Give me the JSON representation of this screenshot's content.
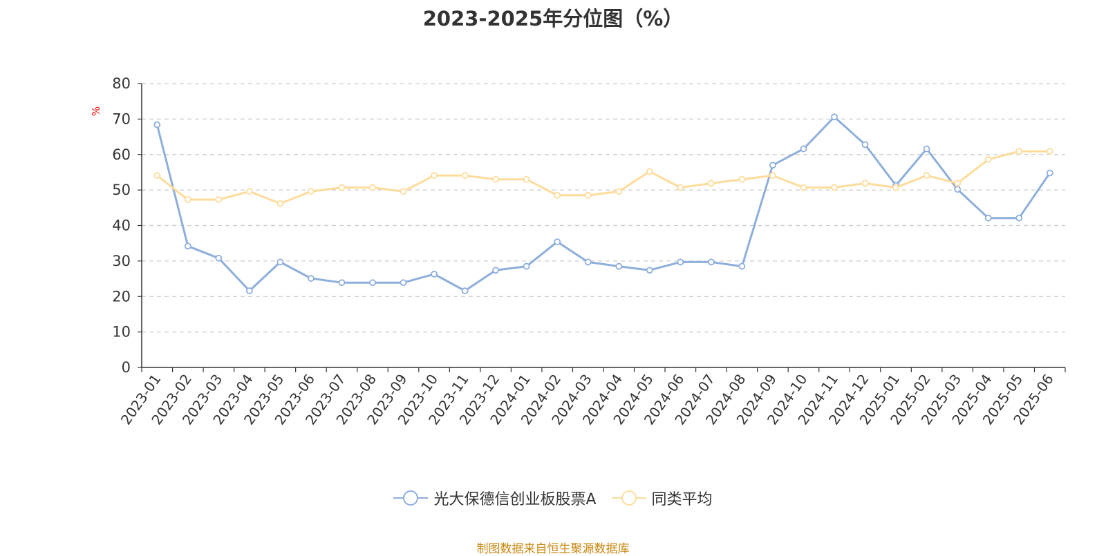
{
  "chart_data": {
    "type": "line",
    "title": "2023-2025年分位图（%）",
    "ylabel": "%",
    "xlabel": "",
    "ylim": [
      0,
      80
    ],
    "yticks": [
      "0",
      "10",
      "20",
      "30",
      "40",
      "50",
      "60",
      "70",
      "80"
    ],
    "grid": true,
    "legend_position": "bottom",
    "categories": [
      "2023-01",
      "2023-02",
      "2023-03",
      "2023-04",
      "2023-05",
      "2023-06",
      "2023-07",
      "2023-08",
      "2023-09",
      "2023-10",
      "2023-11",
      "2023-12",
      "2024-01",
      "2024-02",
      "2024-03",
      "2024-04",
      "2024-05",
      "2024-06",
      "2024-07",
      "2024-08",
      "2024-09",
      "2024-10",
      "2024-11",
      "2024-12",
      "2025-01",
      "2025-02",
      "2025-03",
      "2025-04",
      "2025-05",
      "2025-06"
    ],
    "series": [
      {
        "name": "光大保德信创业板股票A",
        "color": "#8eaedb",
        "values": [
          68.4,
          34.2,
          30.8,
          21.6,
          29.7,
          25.1,
          23.9,
          23.9,
          23.9,
          26.3,
          21.6,
          27.4,
          28.5,
          35.4,
          29.7,
          28.5,
          27.4,
          29.7,
          29.7,
          28.5,
          57.0,
          61.6,
          70.6,
          62.8,
          51.3,
          61.6,
          50.2,
          42.1,
          42.1,
          54.8
        ]
      },
      {
        "name": "同类平均",
        "color": "#fddc9b",
        "values": [
          54.1,
          47.3,
          47.3,
          49.6,
          46.2,
          49.6,
          50.7,
          50.7,
          49.6,
          54.1,
          54.1,
          53.0,
          53.0,
          48.5,
          48.5,
          49.6,
          55.2,
          50.7,
          51.9,
          53.0,
          54.1,
          50.7,
          50.7,
          51.9,
          50.7,
          54.1,
          51.9,
          58.6,
          60.9,
          60.9
        ]
      }
    ]
  },
  "footer": {
    "source": "制图数据来自恒生聚源数据库"
  }
}
